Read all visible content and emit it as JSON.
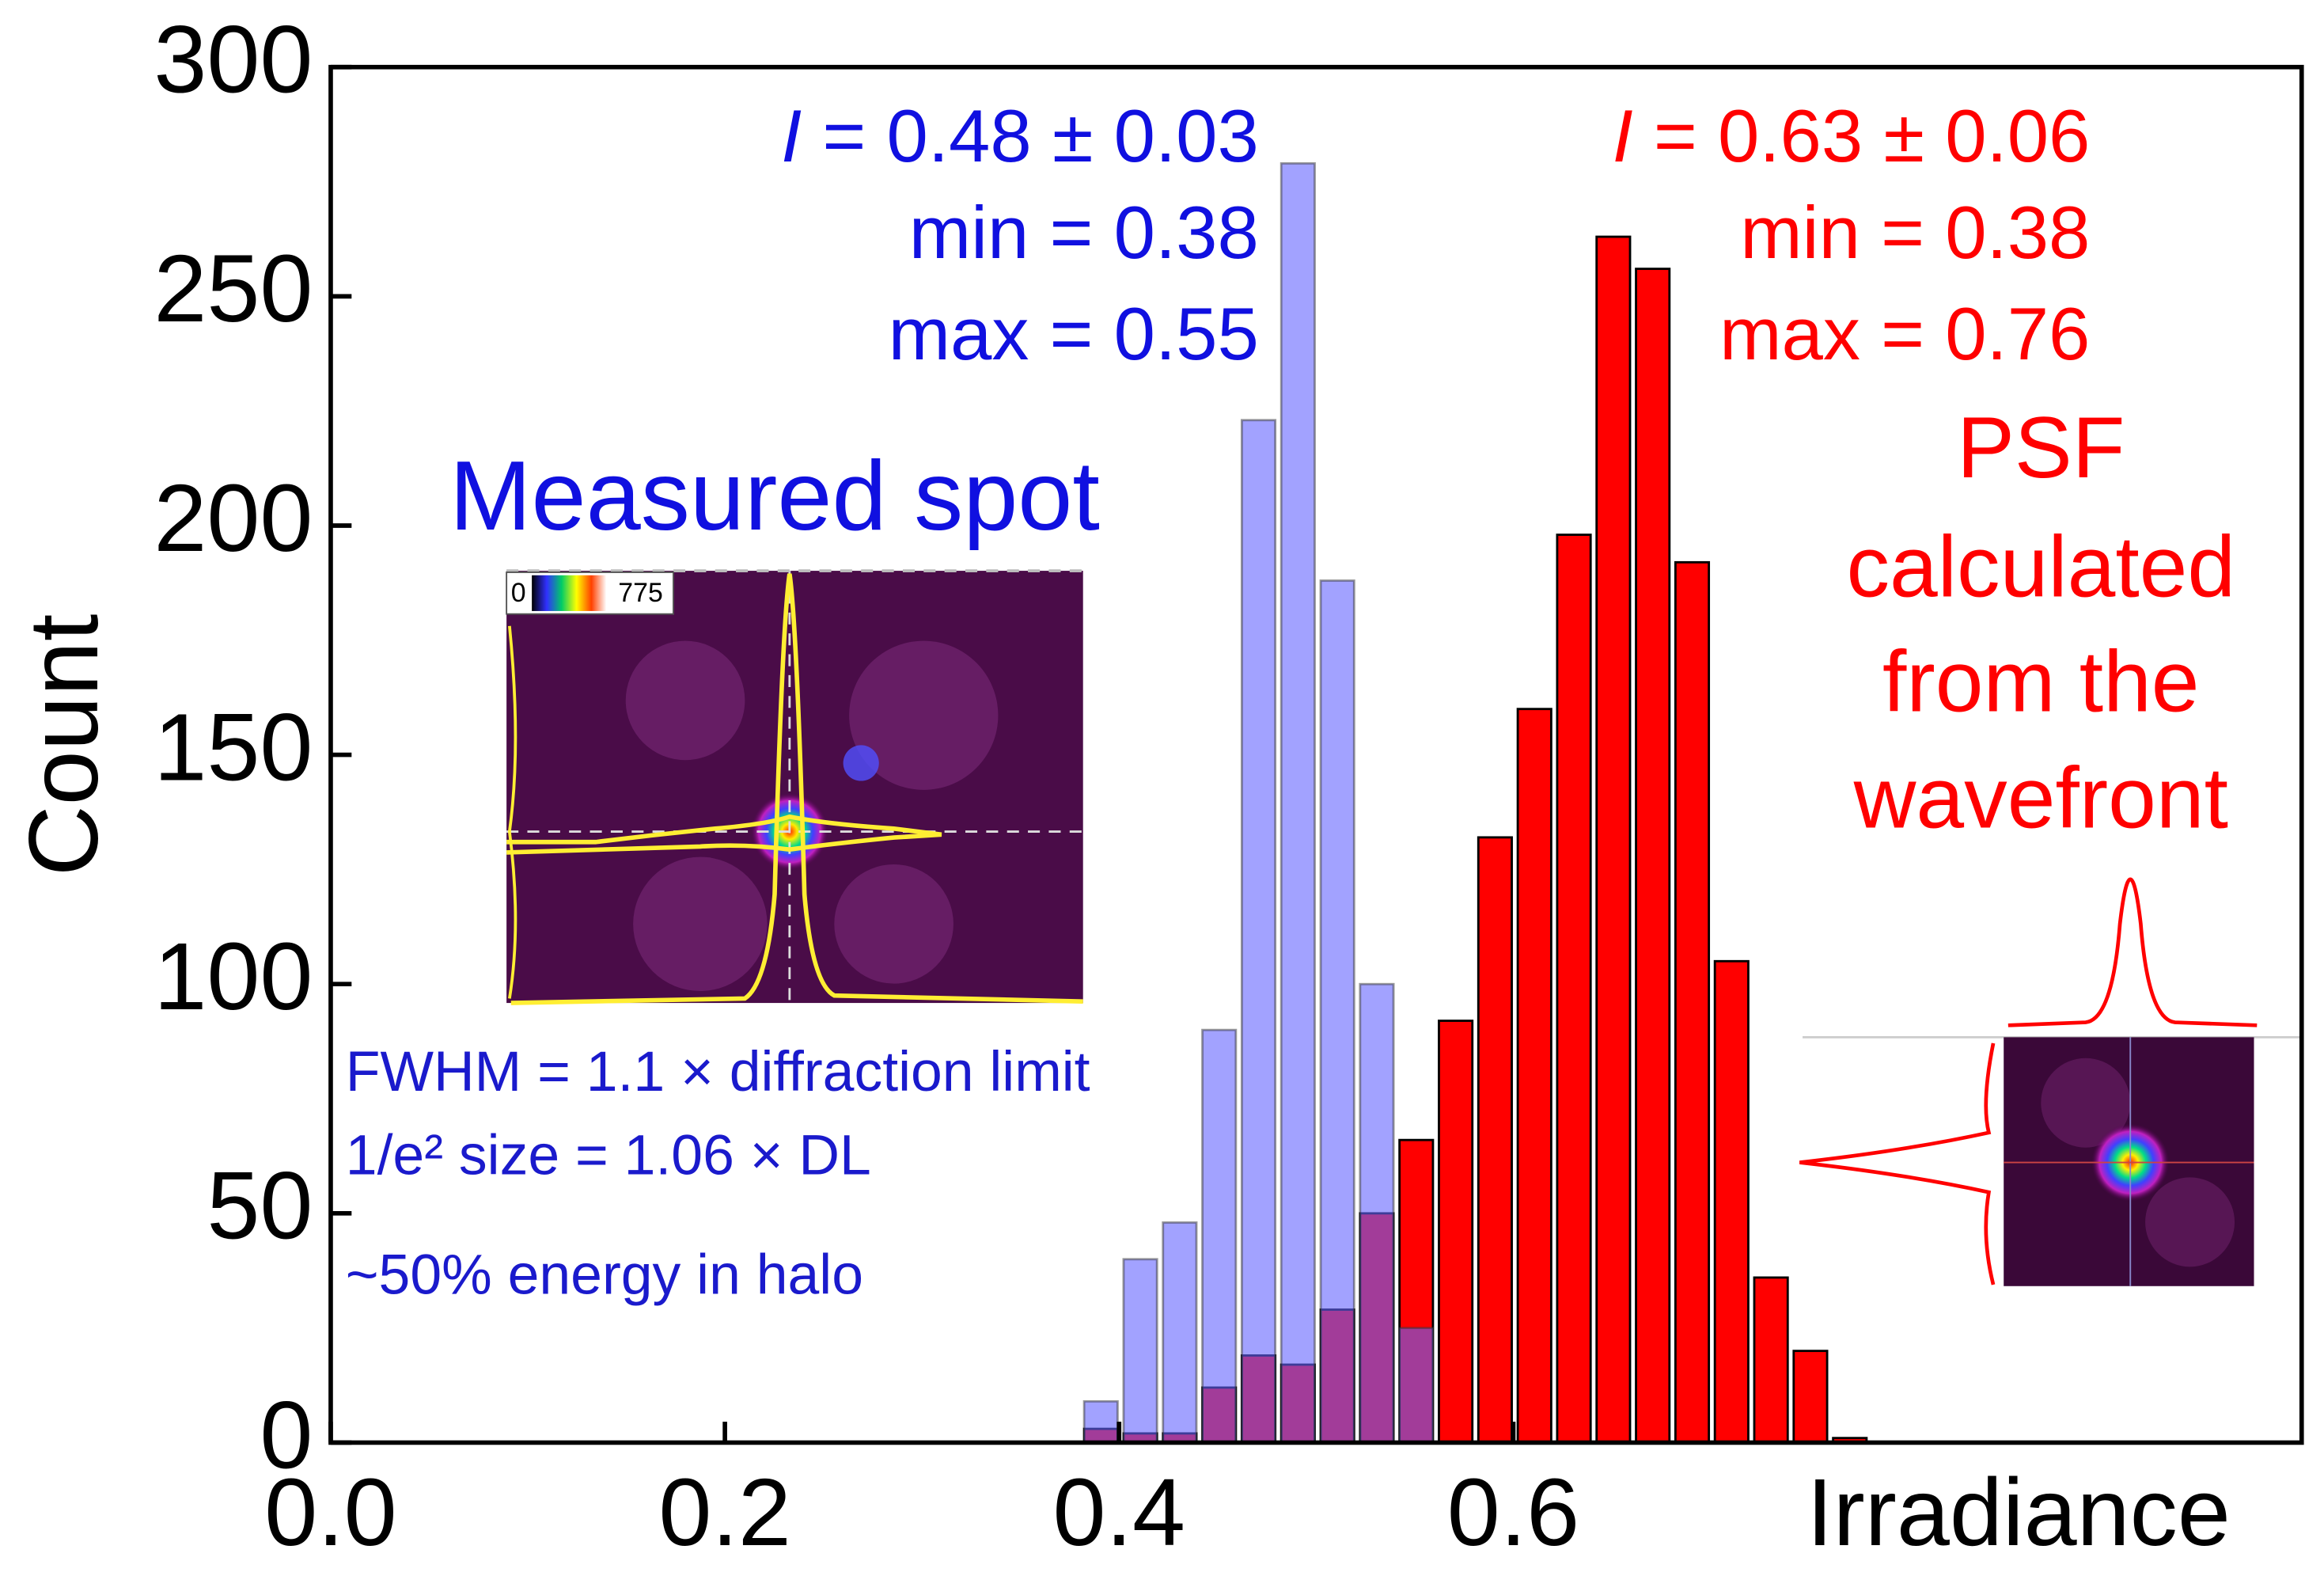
{
  "chart_data": {
    "type": "histogram",
    "xlabel": "Irradiance",
    "ylabel": "Count",
    "bins": [
      0.38,
      0.4,
      0.42,
      0.44,
      0.46,
      0.48,
      0.5,
      0.52,
      0.54,
      0.56,
      0.58,
      0.6,
      0.62,
      0.64,
      0.66,
      0.68,
      0.7,
      0.72,
      0.74,
      0.76,
      0.78
    ],
    "series": [
      {
        "name": "PSF calculated from the wavefront",
        "color": "#ff0000",
        "values": [
          3,
          2,
          2,
          12,
          19,
          17,
          29,
          50,
          66,
          92,
          132,
          160,
          198,
          263,
          256,
          192,
          105,
          36,
          20,
          1
        ]
      },
      {
        "name": "Measured spot",
        "color": "#6464ff",
        "values": [
          9,
          40,
          48,
          90,
          223,
          279,
          188,
          100,
          25,
          0,
          0,
          0,
          0,
          0,
          0,
          0,
          0,
          0,
          0,
          0
        ]
      }
    ],
    "xlim": [
      0,
      1.0
    ],
    "xticks": [
      {
        "value": 0,
        "label": "0.0"
      },
      0.2,
      0.4,
      0.6
    ],
    "ylim": [
      0,
      300
    ],
    "yticks": [
      0,
      50,
      100,
      150,
      200,
      250,
      300
    ],
    "annotations": {
      "blue_stats": [
        "I = 0.48 ± 0.03",
        "min = 0.38",
        "max = 0.55"
      ],
      "red_stats": [
        "I = 0.63 ± 0.06",
        "min = 0.38",
        "max = 0.76"
      ],
      "red_label": [
        "PSF",
        "calculated",
        "from the",
        "wavefront"
      ],
      "blue_notes": [
        "FWHM = 1.1 × diffraction limit",
        "1/e² size = 1.06 × DL",
        "~50% energy in halo"
      ],
      "colorbar_min": "0",
      "colorbar_max": "775"
    }
  }
}
